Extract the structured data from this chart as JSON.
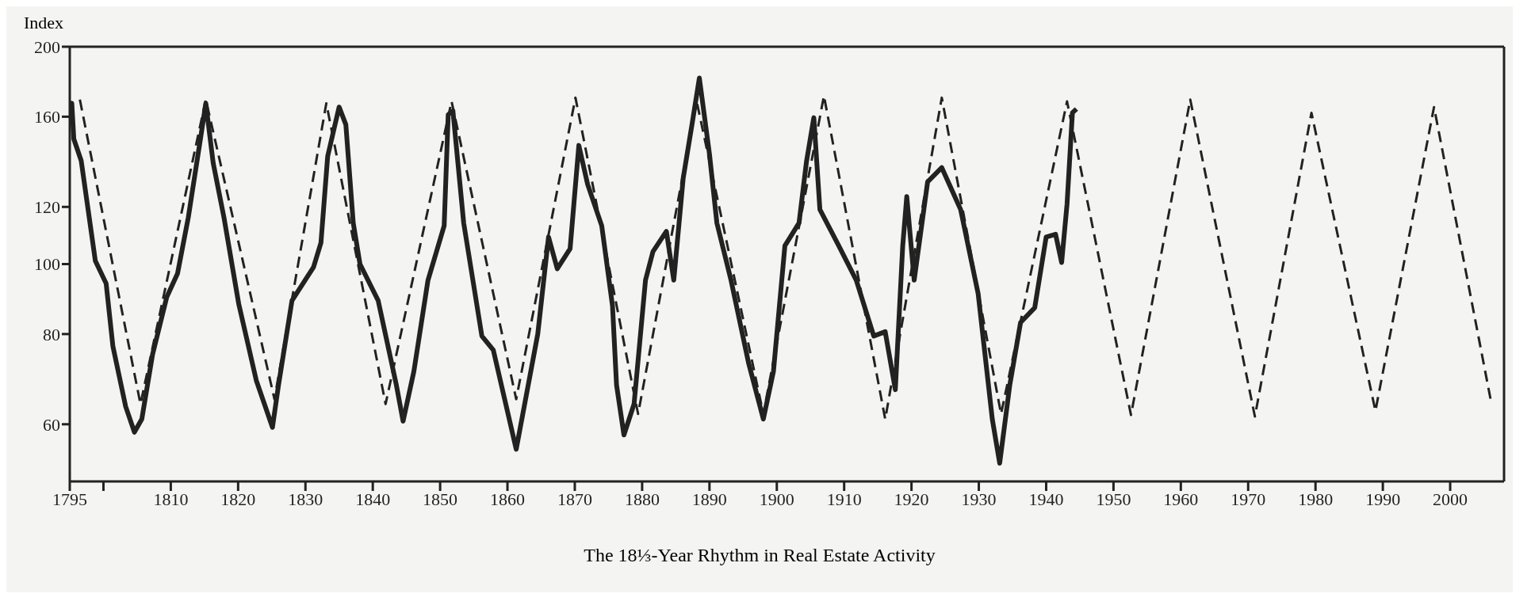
{
  "chart_data": {
    "type": "line",
    "title": "The 18⅓-Year Rhythm in Real Estate Activity",
    "ylabel": "Index",
    "log": "y",
    "xlim": [
      1795,
      2008
    ],
    "xticks": [
      1795,
      {
        "value": 1800,
        "label": null
      },
      1810,
      1820,
      1830,
      1840,
      1850,
      1860,
      1870,
      1880,
      1890,
      1900,
      1910,
      1920,
      1930,
      1940,
      1950,
      1960,
      1970,
      1980,
      1990,
      2000
    ],
    "ylim": [
      50,
      200
    ],
    "yticks": [
      60,
      80,
      100,
      120,
      160,
      200
    ],
    "series": [
      {
        "color": "#222222",
        "line_style": "solid",
        "x": [
          1795,
          1795.3,
          1795.6,
          1796.7,
          1798.8,
          1800.4,
          1801.4,
          1803.3,
          1804.6,
          1805.7,
          1807.3,
          1809.4,
          1811,
          1812.6,
          1814.5,
          1815.2,
          1816.3,
          1817.9,
          1820.1,
          1822.7,
          1825.1,
          1826,
          1828,
          1831.2,
          1832.3,
          1833.3,
          1835,
          1836,
          1837.1,
          1838.1,
          1840.8,
          1843.5,
          1844.5,
          1846.1,
          1848.2,
          1850.6,
          1851.2,
          1851.9,
          1853.5,
          1856.2,
          1857.9,
          1861.3,
          1864.5,
          1866.1,
          1867.4,
          1869.3,
          1870.6,
          1871.9,
          1874,
          1875.6,
          1876.2,
          1877.3,
          1878.8,
          1880.5,
          1881.6,
          1883.6,
          1884.7,
          1886.1,
          1887.4,
          1888.5,
          1890,
          1891.1,
          1893.2,
          1895.8,
          1898,
          1899.5,
          1901.2,
          1903.3,
          1904.4,
          1905.5,
          1906.4,
          1909.2,
          1911.8,
          1914.4,
          1916.1,
          1917.6,
          1918.7,
          1919.3,
          1920.4,
          1922.4,
          1924.5,
          1927.3,
          1929.9,
          1932,
          1933.1,
          1934.6,
          1936.2,
          1938.3,
          1940,
          1941.4,
          1942.3,
          1943.1,
          1943.9,
          1944.5
        ],
        "values": [
          165,
          167,
          149,
          139,
          101,
          94,
          77,
          63.5,
          58.5,
          61,
          75,
          90,
          97,
          116,
          151,
          167,
          138,
          116,
          88,
          69,
          59.4,
          68,
          89,
          99,
          107,
          141,
          165,
          156,
          114,
          100,
          89,
          68,
          60.6,
          71,
          95,
          113,
          161,
          163,
          114,
          79.5,
          76,
          55.4,
          80,
          109,
          98.5,
          105,
          146,
          129,
          113,
          87.5,
          68,
          58,
          64,
          95,
          104,
          111,
          95,
          131.5,
          156,
          181,
          142,
          114,
          95,
          73,
          61,
          71,
          106,
          114,
          138.5,
          159.5,
          119,
          106,
          95,
          79.5,
          80.6,
          67,
          106,
          124,
          95,
          130,
          136,
          119,
          91,
          61,
          53,
          68,
          83,
          87,
          109,
          110,
          100.5,
          121,
          162,
          164
        ]
      },
      {
        "color": "#222222",
        "line_style": "dashed",
        "x": [
          1796.5,
          1805.5,
          1815.2,
          1825.4,
          1833.1,
          1841.9,
          1851.7,
          1861.3,
          1870.1,
          1879.4,
          1888.1,
          1898,
          1907,
          1916.1,
          1924.5,
          1933.3,
          1943.1,
          1952.6,
          1961.4,
          1971,
          1979.4,
          1988.9,
          1997.6,
          2006
        ],
        "values": [
          169,
          64,
          169,
          65,
          167,
          64,
          168,
          65,
          170,
          62,
          168,
          62,
          171,
          61,
          170,
          62,
          168,
          61.8,
          169,
          61.5,
          162,
          62.6,
          165,
          65
        ]
      }
    ]
  }
}
